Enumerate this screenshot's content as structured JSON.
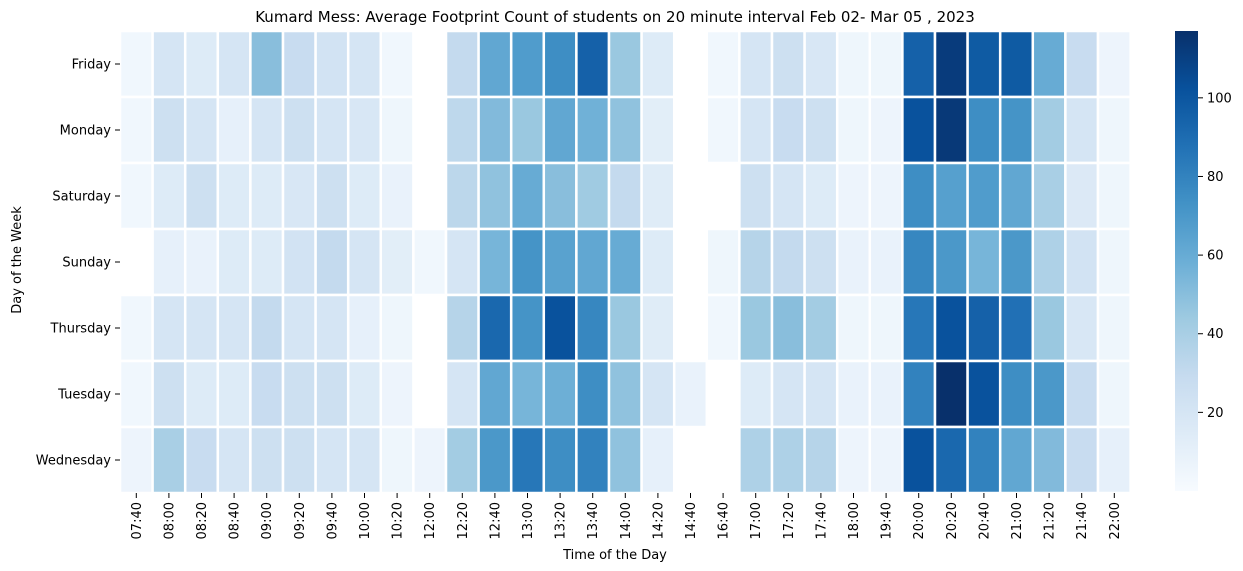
{
  "chart_data": {
    "type": "heatmap",
    "title": "Kumard Mess: Average Footprint Count of students on 20 minute interval Feb 02- Mar 05 , 2023",
    "xlabel": "Time of the Day",
    "ylabel": "Day of the Week",
    "x": [
      "07:40",
      "08:00",
      "08:20",
      "08:40",
      "09:00",
      "09:20",
      "09:40",
      "10:00",
      "10:20",
      "12:00",
      "12:20",
      "12:40",
      "13:00",
      "13:20",
      "13:40",
      "14:00",
      "14:20",
      "14:40",
      "16:40",
      "17:00",
      "17:20",
      "17:40",
      "18:00",
      "19:40",
      "20:00",
      "20:20",
      "20:40",
      "21:00",
      "21:20",
      "21:40",
      "22:00"
    ],
    "y": [
      "Friday",
      "Monday",
      "Saturday",
      "Sunday",
      "Thursday",
      "Tuesday",
      "Wednesday"
    ],
    "values": [
      [
        4,
        20,
        15,
        20,
        50,
        28,
        22,
        20,
        4,
        null,
        30,
        62,
        68,
        75,
        95,
        45,
        15,
        null,
        4,
        20,
        25,
        18,
        5,
        5,
        95,
        112,
        98,
        98,
        60,
        28,
        6
      ],
      [
        4,
        25,
        20,
        10,
        20,
        25,
        20,
        18,
        5,
        null,
        32,
        52,
        45,
        62,
        57,
        48,
        12,
        null,
        4,
        20,
        28,
        25,
        5,
        6,
        102,
        113,
        75,
        72,
        42,
        20,
        5
      ],
      [
        4,
        15,
        25,
        15,
        15,
        18,
        25,
        15,
        8,
        null,
        33,
        48,
        60,
        50,
        43,
        30,
        14,
        null,
        null,
        25,
        20,
        15,
        6,
        6,
        75,
        66,
        68,
        62,
        40,
        16,
        5
      ],
      [
        null,
        10,
        8,
        15,
        15,
        22,
        30,
        20,
        12,
        4,
        20,
        55,
        72,
        65,
        62,
        60,
        15,
        null,
        5,
        35,
        30,
        25,
        8,
        8,
        78,
        70,
        55,
        70,
        38,
        22,
        5
      ],
      [
        4,
        20,
        20,
        20,
        30,
        20,
        20,
        10,
        5,
        null,
        35,
        92,
        72,
        102,
        78,
        45,
        14,
        null,
        4,
        45,
        50,
        42,
        5,
        5,
        85,
        102,
        95,
        88,
        45,
        18,
        5
      ],
      [
        4,
        25,
        15,
        15,
        28,
        25,
        25,
        15,
        6,
        null,
        20,
        62,
        55,
        58,
        75,
        48,
        20,
        8,
        null,
        15,
        20,
        20,
        8,
        8,
        80,
        117,
        102,
        75,
        70,
        28,
        5
      ],
      [
        6,
        40,
        28,
        20,
        25,
        25,
        20,
        20,
        5,
        6,
        42,
        70,
        85,
        75,
        80,
        48,
        10,
        null,
        null,
        38,
        38,
        35,
        6,
        6,
        102,
        92,
        80,
        62,
        52,
        28,
        10
      ]
    ],
    "colorbar": {
      "ticks": [
        20,
        40,
        60,
        80,
        100
      ],
      "min": 0,
      "max": 117
    },
    "colormap": "Blues"
  }
}
